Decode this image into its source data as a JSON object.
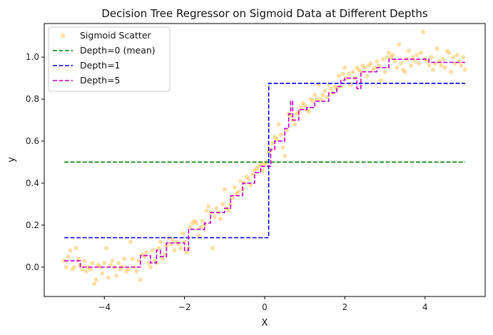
{
  "chart_data": {
    "type": "line",
    "title": "Decision Tree Regressor on Sigmoid Data at Different Depths",
    "xlabel": "X",
    "ylabel": "y",
    "xlim": [
      -5.5,
      5.5
    ],
    "ylim": [
      -0.14,
      1.16
    ],
    "xticks": [
      -4,
      -2,
      0,
      2,
      4
    ],
    "xtick_labels": [
      "−4",
      "−2",
      "0",
      "2",
      "4"
    ],
    "yticks": [
      0.0,
      0.2,
      0.4,
      0.6,
      0.8,
      1.0
    ],
    "ytick_labels": [
      "0.0",
      "0.2",
      "0.4",
      "0.6",
      "0.8",
      "1.0"
    ],
    "grid": false,
    "legend_position": "top-left",
    "scatter": {
      "name": "Sigmoid Scatter",
      "color": "#ffa500",
      "points": [
        [
          -5.0,
          0.03
        ],
        [
          -4.95,
          0.0
        ],
        [
          -4.9,
          0.05
        ],
        [
          -4.85,
          0.08
        ],
        [
          -4.8,
          -0.01
        ],
        [
          -4.75,
          0.0
        ],
        [
          -4.7,
          0.09
        ],
        [
          -4.65,
          0.04
        ],
        [
          -4.6,
          0.01
        ],
        [
          -4.55,
          -0.01
        ],
        [
          -4.5,
          0.03
        ],
        [
          -4.45,
          -0.02
        ],
        [
          -4.4,
          0.0
        ],
        [
          -4.35,
          -0.01
        ],
        [
          -4.3,
          0.02
        ],
        [
          -4.25,
          -0.08
        ],
        [
          -4.2,
          -0.06
        ],
        [
          -4.15,
          0.01
        ],
        [
          -4.1,
          0.0
        ],
        [
          -4.05,
          -0.03
        ],
        [
          -4.0,
          0.02
        ],
        [
          -3.95,
          0.09
        ],
        [
          -3.9,
          -0.05
        ],
        [
          -3.85,
          0.01
        ],
        [
          -3.8,
          0.03
        ],
        [
          -3.75,
          0.0
        ],
        [
          -3.7,
          -0.04
        ],
        [
          -3.65,
          0.02
        ],
        [
          -3.6,
          -0.01
        ],
        [
          -3.55,
          0.0
        ],
        [
          -3.5,
          0.04
        ],
        [
          -3.45,
          -0.02
        ],
        [
          -3.4,
          -0.01
        ],
        [
          -3.35,
          0.12
        ],
        [
          -3.3,
          0.04
        ],
        [
          -3.25,
          0.0
        ],
        [
          -3.2,
          -0.02
        ],
        [
          -3.15,
          0.03
        ],
        [
          -3.1,
          -0.06
        ],
        [
          -3.05,
          0.06
        ],
        [
          -3.0,
          0.05
        ],
        [
          -2.95,
          0.07
        ],
        [
          -2.9,
          0.02
        ],
        [
          -2.85,
          0.0
        ],
        [
          -2.8,
          0.08
        ],
        [
          -2.75,
          0.03
        ],
        [
          -2.7,
          0.02
        ],
        [
          -2.65,
          0.09
        ],
        [
          -2.6,
          0.12
        ],
        [
          -2.55,
          0.04
        ],
        [
          -2.5,
          0.06
        ],
        [
          -2.45,
          0.1
        ],
        [
          -2.4,
          0.14
        ],
        [
          -2.35,
          0.11
        ],
        [
          -2.3,
          0.13
        ],
        [
          -2.25,
          0.08
        ],
        [
          -2.2,
          0.12
        ],
        [
          -2.15,
          0.11
        ],
        [
          -2.1,
          0.09
        ],
        [
          -2.05,
          0.16
        ],
        [
          -2.0,
          0.12
        ],
        [
          -1.95,
          0.07
        ],
        [
          -1.9,
          0.09
        ],
        [
          -1.85,
          0.19
        ],
        [
          -1.8,
          0.21
        ],
        [
          -1.75,
          0.22
        ],
        [
          -1.7,
          0.21
        ],
        [
          -1.65,
          0.15
        ],
        [
          -1.6,
          0.19
        ],
        [
          -1.55,
          0.22
        ],
        [
          -1.5,
          0.2
        ],
        [
          -1.45,
          0.27
        ],
        [
          -1.4,
          0.29
        ],
        [
          -1.35,
          0.26
        ],
        [
          -1.3,
          0.09
        ],
        [
          -1.25,
          0.24
        ],
        [
          -1.2,
          0.28
        ],
        [
          -1.15,
          0.26
        ],
        [
          -1.1,
          0.23
        ],
        [
          -1.05,
          0.3
        ],
        [
          -1.0,
          0.37
        ],
        [
          -0.95,
          0.28
        ],
        [
          -0.9,
          0.27
        ],
        [
          -0.85,
          0.3
        ],
        [
          -0.8,
          0.33
        ],
        [
          -0.75,
          0.38
        ],
        [
          -0.7,
          0.35
        ],
        [
          -0.65,
          0.36
        ],
        [
          -0.6,
          0.41
        ],
        [
          -0.55,
          0.37
        ],
        [
          -0.5,
          0.4
        ],
        [
          -0.45,
          0.43
        ],
        [
          -0.4,
          0.42
        ],
        [
          -0.35,
          0.39
        ],
        [
          -0.3,
          0.44
        ],
        [
          -0.25,
          0.46
        ],
        [
          -0.2,
          0.47
        ],
        [
          -0.15,
          0.48
        ],
        [
          -0.1,
          0.49
        ],
        [
          -0.05,
          0.46
        ],
        [
          0.0,
          0.49
        ],
        [
          0.05,
          0.5
        ],
        [
          0.1,
          0.55
        ],
        [
          0.15,
          0.56
        ],
        [
          0.2,
          0.59
        ],
        [
          0.25,
          0.62
        ],
        [
          0.3,
          0.61
        ],
        [
          0.35,
          0.68
        ],
        [
          0.4,
          0.63
        ],
        [
          0.45,
          0.57
        ],
        [
          0.5,
          0.53
        ],
        [
          0.55,
          0.65
        ],
        [
          0.6,
          0.73
        ],
        [
          0.65,
          0.72
        ],
        [
          0.7,
          0.7
        ],
        [
          0.75,
          0.68
        ],
        [
          0.8,
          0.73
        ],
        [
          0.85,
          0.74
        ],
        [
          0.9,
          0.76
        ],
        [
          0.95,
          0.78
        ],
        [
          1.0,
          0.77
        ],
        [
          1.05,
          0.75
        ],
        [
          1.1,
          0.74
        ],
        [
          1.15,
          0.8
        ],
        [
          1.2,
          0.79
        ],
        [
          1.25,
          0.82
        ],
        [
          1.3,
          0.8
        ],
        [
          1.35,
          0.87
        ],
        [
          1.4,
          0.8
        ],
        [
          1.45,
          0.82
        ],
        [
          1.5,
          0.84
        ],
        [
          1.55,
          0.81
        ],
        [
          1.6,
          0.87
        ],
        [
          1.65,
          0.85
        ],
        [
          1.7,
          0.83
        ],
        [
          1.75,
          0.86
        ],
        [
          1.8,
          0.85
        ],
        [
          1.85,
          0.91
        ],
        [
          1.9,
          0.86
        ],
        [
          1.95,
          0.92
        ],
        [
          2.0,
          0.95
        ],
        [
          2.05,
          0.9
        ],
        [
          2.1,
          0.92
        ],
        [
          2.15,
          0.87
        ],
        [
          2.2,
          0.93
        ],
        [
          2.25,
          0.9
        ],
        [
          2.3,
          0.95
        ],
        [
          2.35,
          0.94
        ],
        [
          2.4,
          0.93
        ],
        [
          2.45,
          0.96
        ],
        [
          2.5,
          0.95
        ],
        [
          2.55,
          0.91
        ],
        [
          2.6,
          0.96
        ],
        [
          2.65,
          0.97
        ],
        [
          2.7,
          0.94
        ],
        [
          2.75,
          0.95
        ],
        [
          2.8,
          0.98
        ],
        [
          2.85,
          0.96
        ],
        [
          2.9,
          0.89
        ],
        [
          2.95,
          0.99
        ],
        [
          3.0,
          0.93
        ],
        [
          3.05,
          1.0
        ],
        [
          3.1,
          1.02
        ],
        [
          3.15,
          1.0
        ],
        [
          3.2,
          1.01
        ],
        [
          3.25,
          0.98
        ],
        [
          3.3,
          0.95
        ],
        [
          3.35,
          1.06
        ],
        [
          3.4,
          0.97
        ],
        [
          3.45,
          0.94
        ],
        [
          3.5,
          0.93
        ],
        [
          3.55,
          0.99
        ],
        [
          3.6,
          1.03
        ],
        [
          3.65,
          0.96
        ],
        [
          3.7,
          1.0
        ],
        [
          3.75,
          0.98
        ],
        [
          3.8,
          1.01
        ],
        [
          3.85,
          0.97
        ],
        [
          3.9,
          1.02
        ],
        [
          3.95,
          1.12
        ],
        [
          4.0,
          0.99
        ],
        [
          4.05,
          0.98
        ],
        [
          4.1,
          0.96
        ],
        [
          4.15,
          1.0
        ],
        [
          4.2,
          0.94
        ],
        [
          4.25,
          0.97
        ],
        [
          4.3,
          1.04
        ],
        [
          4.35,
          0.98
        ],
        [
          4.4,
          0.96
        ],
        [
          4.45,
          0.99
        ],
        [
          4.5,
          0.95
        ],
        [
          4.55,
          1.03
        ],
        [
          4.6,
          1.02
        ],
        [
          4.65,
          0.93
        ],
        [
          4.7,
          1.0
        ],
        [
          4.75,
          0.97
        ],
        [
          4.8,
          1.01
        ],
        [
          4.85,
          0.98
        ],
        [
          4.9,
          0.96
        ],
        [
          4.95,
          1.0
        ],
        [
          5.0,
          0.94
        ]
      ]
    },
    "series": [
      {
        "name": "Depth=0 (mean)",
        "color": "#008000",
        "dash": "dashed",
        "steps": [
          [
            -5.0,
            0.5
          ],
          [
            5.0,
            0.5
          ]
        ]
      },
      {
        "name": "Depth=1",
        "color": "#0000ff",
        "dash": "dashed",
        "steps": [
          [
            -5.0,
            0.14
          ],
          [
            0.1,
            0.14
          ],
          [
            0.1,
            0.875
          ],
          [
            5.0,
            0.875
          ]
        ]
      },
      {
        "name": "Depth=5",
        "color": "#bf00bf",
        "dash": "dashed",
        "steps": [
          [
            -5.0,
            0.03
          ],
          [
            -4.6,
            0.03
          ],
          [
            -4.6,
            0.0
          ],
          [
            -3.1,
            0.0
          ],
          [
            -3.1,
            0.055
          ],
          [
            -2.85,
            0.055
          ],
          [
            -2.85,
            0.02
          ],
          [
            -2.7,
            0.02
          ],
          [
            -2.7,
            0.08
          ],
          [
            -2.6,
            0.08
          ],
          [
            -2.6,
            0.05
          ],
          [
            -2.45,
            0.05
          ],
          [
            -2.45,
            0.115
          ],
          [
            -2.0,
            0.115
          ],
          [
            -2.0,
            0.08
          ],
          [
            -1.9,
            0.08
          ],
          [
            -1.9,
            0.18
          ],
          [
            -1.5,
            0.18
          ],
          [
            -1.5,
            0.21
          ],
          [
            -1.35,
            0.21
          ],
          [
            -1.35,
            0.26
          ],
          [
            -1.0,
            0.26
          ],
          [
            -1.0,
            0.28
          ],
          [
            -0.85,
            0.28
          ],
          [
            -0.85,
            0.34
          ],
          [
            -0.55,
            0.34
          ],
          [
            -0.55,
            0.4
          ],
          [
            -0.25,
            0.4
          ],
          [
            -0.25,
            0.45
          ],
          [
            -0.1,
            0.45
          ],
          [
            -0.1,
            0.48
          ],
          [
            0.15,
            0.48
          ],
          [
            0.15,
            0.56
          ],
          [
            0.25,
            0.56
          ],
          [
            0.25,
            0.6
          ],
          [
            0.5,
            0.6
          ],
          [
            0.5,
            0.66
          ],
          [
            0.6,
            0.66
          ],
          [
            0.6,
            0.73
          ],
          [
            0.65,
            0.73
          ],
          [
            0.65,
            0.79
          ],
          [
            0.7,
            0.79
          ],
          [
            0.7,
            0.7
          ],
          [
            0.85,
            0.7
          ],
          [
            0.85,
            0.75
          ],
          [
            1.05,
            0.75
          ],
          [
            1.05,
            0.76
          ],
          [
            1.25,
            0.76
          ],
          [
            1.25,
            0.79
          ],
          [
            1.6,
            0.79
          ],
          [
            1.6,
            0.83
          ],
          [
            1.8,
            0.83
          ],
          [
            1.8,
            0.86
          ],
          [
            1.9,
            0.86
          ],
          [
            1.9,
            0.89
          ],
          [
            2.0,
            0.89
          ],
          [
            2.0,
            0.9
          ],
          [
            2.3,
            0.9
          ],
          [
            2.3,
            0.85
          ],
          [
            2.4,
            0.85
          ],
          [
            2.4,
            0.93
          ],
          [
            2.8,
            0.93
          ],
          [
            2.8,
            0.95
          ],
          [
            3.1,
            0.95
          ],
          [
            3.1,
            0.99
          ],
          [
            4.1,
            0.99
          ],
          [
            4.1,
            0.975
          ],
          [
            5.0,
            0.975
          ]
        ]
      }
    ]
  }
}
